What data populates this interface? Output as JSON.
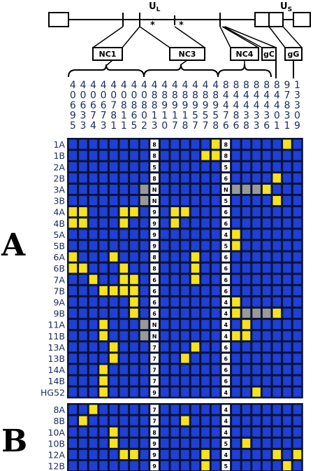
{
  "genome": {
    "region_ul": "U",
    "region_ul_sub": "L",
    "region_us": "U",
    "region_us_sub": "S",
    "boxes": [
      "NC1",
      "NC3",
      "NC4",
      "gC",
      "gG"
    ]
  },
  "columns": [
    "40695",
    "40633",
    "40674",
    "40673",
    "40781",
    "40811",
    "40865",
    "40802",
    "48813",
    "48910",
    "48917",
    "48918",
    "48957",
    "48957",
    "48958",
    "84476",
    "84486",
    "84438",
    "84433",
    "84436",
    "84401",
    "97831",
    "13309"
  ],
  "panel_a": {
    "label": "A",
    "rows": [
      {
        "label": "1A",
        "ids": "........................",
        "num": "8"
      },
      {
        "label": "1B",
        "ids": "",
        "num": "8"
      },
      {
        "label": "2A",
        "ids": "",
        "num": "5"
      },
      {
        "label": "2B",
        "ids": "",
        "num": "8"
      },
      {
        "label": "3A",
        "ids": "",
        "num": "N"
      },
      {
        "label": "3B",
        "ids": "",
        "num": "N"
      },
      {
        "label": "4A",
        "ids": "",
        "num": "9"
      },
      {
        "label": "4B",
        "ids": "",
        "num": "9"
      },
      {
        "label": "5A",
        "ids": "",
        "num": "9"
      },
      {
        "label": "5B",
        "ids": "",
        "num": "9"
      },
      {
        "label": "6A",
        "ids": "",
        "num": "8"
      },
      {
        "label": "6B",
        "ids": "",
        "num": "8"
      },
      {
        "label": "7A",
        "ids": "",
        "num": "6"
      },
      {
        "label": "7B",
        "ids": "",
        "num": "6"
      },
      {
        "label": "9A",
        "ids": "",
        "num": "6"
      },
      {
        "label": "9B",
        "ids": "",
        "num": "6"
      },
      {
        "label": "11A",
        "ids": "",
        "num": "N"
      },
      {
        "label": "11B",
        "ids": "",
        "num": "N"
      },
      {
        "label": "13A",
        "ids": "",
        "num": "7"
      },
      {
        "label": "13B",
        "ids": "",
        "num": "7"
      },
      {
        "label": "14A",
        "ids": "",
        "num": "7"
      },
      {
        "label": "14B",
        "ids": "",
        "num": "7"
      },
      {
        "label": "HG52",
        "ids": "",
        "num": "9"
      }
    ]
  },
  "panel_a_right_nums": [
    "8",
    "8",
    "5",
    "6",
    "N",
    "5",
    "6",
    "6",
    "4",
    "5",
    "6",
    "6",
    "6",
    "6",
    "4",
    "4",
    "4",
    "4",
    "6",
    "6",
    "6",
    "6",
    "4"
  ],
  "panel_b": {
    "label": "B",
    "rows": [
      {
        "label": "8A",
        "num": "7"
      },
      {
        "label": "8B",
        "num": "7"
      },
      {
        "label": "10A",
        "num": "8"
      },
      {
        "label": "10B",
        "num": "9"
      },
      {
        "label": "12A",
        "num": "9"
      },
      {
        "label": "12B",
        "num": "9"
      }
    ]
  },
  "panel_b_right_nums": [
    "4",
    "4",
    "4",
    "5",
    "4",
    "5"
  ],
  "cells_a": [
    "bbbbbbbbWbbbbbyWbbbbbyb",
    "bbbbbbbbWbbbbyyWbbbbbbb",
    "bbbbbbbbWbbbbbbWbbbbbbb",
    "bbbbbbbbWbbbbbbWbbbbybb",
    "bbbbbbbgWbbbbbbWgggybbb",
    "bbbbbbbgWbbbbbbWbbbbybb",
    "yybbbyybWbyybbbWbbbbbbb",
    "yybbbybbWbybbbbWbbbbbbb",
    "bbbbbbbbWbbbbbbWybbbbbb",
    "bbbbbbbbWbbbbbbWybbbbbb",
    "ybbbybbbWbbbybbWbbbbbbb",
    "yybbbybbWbbbybbWbbbbbbb",
    "bbybbyybWbbbybbWbbbbbbb",
    "bbbyyyybWbbbbbbWbbbbbbb",
    "bbbbbbybWbbbbbbWybbbbbb",
    "bbbbbbybWbbbbbbWygggybb",
    "bbbybbbgWbbbbbbWbybbbbb",
    "bbbybbbgWbbbbbbWyybbbbb",
    "bbbbybbbWbbbybbWbbbbbbb",
    "bbbbybbbWbbybbbWbbbbbbb",
    "bbbybbbbWbbbbbbWbbbbbbb",
    "bbbybbbbWbbbbbbWbbbbbbb",
    "bbbybbbbWbbbbbbWbbybbbb"
  ],
  "cells_b": [
    "bbybbbbbWbbbbbbWbbbbbbb",
    "bybbbbbbWbbybbbWbbbbbbb",
    "bbbbybbbWbbbbbbWbbbbbbb",
    "bbbbybbbWbbbbbbWbybbbbb",
    "bbbbbyybWbbbbybWbbbbyby",
    "bbbbbbbbWbbbbybWbbbbbyb"
  ],
  "colors": {
    "blue": "#1f3fd6",
    "yellow": "#f7e21e",
    "grey": "#999999",
    "white": "#ffffff",
    "grid": "#0a1430"
  }
}
